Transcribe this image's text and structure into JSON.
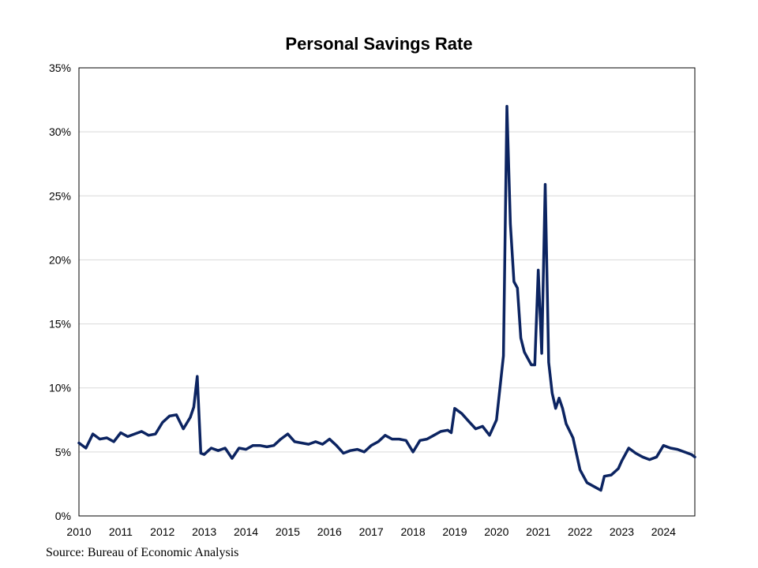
{
  "chart_data": {
    "type": "line",
    "title": "Personal Savings Rate",
    "source": "Source: Bureau of Economic Analysis",
    "xlabel": "",
    "ylabel": "",
    "x_range": [
      2010.0,
      2024.75
    ],
    "ylim": [
      0,
      35
    ],
    "y_ticks": [
      0,
      5,
      10,
      15,
      20,
      25,
      30,
      35
    ],
    "y_tick_labels": [
      "0%",
      "5%",
      "10%",
      "15%",
      "20%",
      "25%",
      "30%",
      "35%"
    ],
    "x_ticks": [
      2010,
      2011,
      2012,
      2013,
      2014,
      2015,
      2016,
      2017,
      2018,
      2019,
      2020,
      2021,
      2022,
      2023,
      2024
    ],
    "x_tick_labels": [
      "2010",
      "2011",
      "2012",
      "2013",
      "2014",
      "2015",
      "2016",
      "2017",
      "2018",
      "2019",
      "2020",
      "2021",
      "2022",
      "2023",
      "2024"
    ],
    "grid": "horizontal",
    "line_color": "#0c2461",
    "series": [
      {
        "x": [
          2010.0,
          2010.167,
          2010.333,
          2010.5,
          2010.667,
          2010.833,
          2011.0,
          2011.167,
          2011.333,
          2011.5,
          2011.667,
          2011.833,
          2012.0,
          2012.167,
          2012.333,
          2012.5,
          2012.667,
          2012.75,
          2012.833,
          2012.917,
          2013.0,
          2013.167,
          2013.333,
          2013.5,
          2013.667,
          2013.833,
          2014.0,
          2014.167,
          2014.333,
          2014.5,
          2014.667,
          2014.833,
          2015.0,
          2015.167,
          2015.333,
          2015.5,
          2015.667,
          2015.833,
          2016.0,
          2016.167,
          2016.333,
          2016.5,
          2016.667,
          2016.833,
          2017.0,
          2017.167,
          2017.333,
          2017.5,
          2017.667,
          2017.833,
          2018.0,
          2018.167,
          2018.333,
          2018.5,
          2018.667,
          2018.833,
          2018.917,
          2019.0,
          2019.167,
          2019.333,
          2019.5,
          2019.667,
          2019.833,
          2020.0,
          2020.167,
          2020.25,
          2020.333,
          2020.417,
          2020.5,
          2020.583,
          2020.667,
          2020.833,
          2020.917,
          2021.0,
          2021.083,
          2021.167,
          2021.25,
          2021.333,
          2021.417,
          2021.5,
          2021.583,
          2021.667,
          2021.833,
          2022.0,
          2022.167,
          2022.333,
          2022.5,
          2022.583,
          2022.75,
          2022.917,
          2023.0,
          2023.167,
          2023.333,
          2023.5,
          2023.667,
          2023.833,
          2024.0,
          2024.167,
          2024.333,
          2024.5,
          2024.667,
          2024.75
        ],
        "values": [
          5.7,
          5.3,
          6.4,
          6.0,
          6.1,
          5.8,
          6.5,
          6.2,
          6.4,
          6.6,
          6.3,
          6.4,
          7.3,
          7.8,
          7.9,
          6.8,
          7.7,
          8.5,
          10.9,
          4.9,
          4.8,
          5.3,
          5.1,
          5.3,
          4.5,
          5.3,
          5.2,
          5.5,
          5.5,
          5.4,
          5.5,
          6.0,
          6.4,
          5.8,
          5.7,
          5.6,
          5.8,
          5.6,
          6.0,
          5.5,
          4.9,
          5.1,
          5.2,
          5.0,
          5.5,
          5.8,
          6.3,
          6.0,
          6.0,
          5.9,
          5.0,
          5.9,
          6.0,
          6.3,
          6.6,
          6.7,
          6.5,
          8.4,
          8.0,
          7.4,
          6.8,
          7.0,
          6.3,
          7.5,
          12.5,
          32.0,
          22.8,
          18.3,
          17.8,
          13.9,
          12.8,
          11.8,
          11.8,
          19.2,
          12.7,
          25.9,
          12.0,
          9.6,
          8.4,
          9.2,
          8.4,
          7.2,
          6.1,
          3.6,
          2.6,
          2.3,
          2.0,
          3.1,
          3.2,
          3.7,
          4.3,
          5.3,
          4.9,
          4.6,
          4.4,
          4.6,
          5.5,
          5.3,
          5.2,
          5.0,
          4.8,
          4.6
        ]
      }
    ]
  }
}
